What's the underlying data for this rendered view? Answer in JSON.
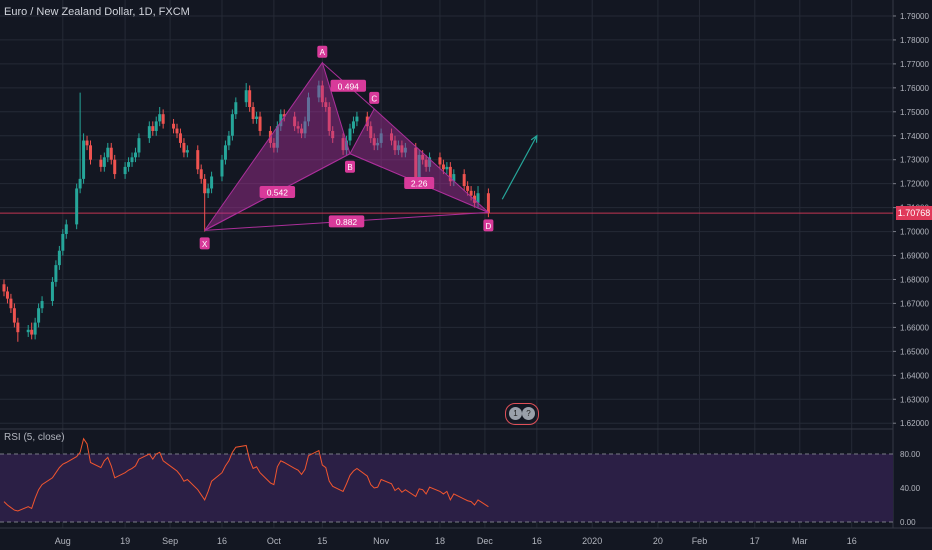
{
  "header": {
    "title": "Euro / New Zealand Dollar, 1D, FXCM"
  },
  "colors": {
    "background": "#131722",
    "grid": "#252a36",
    "up": "#26a69a",
    "down": "#ef5350",
    "pattern": "#ab2f9a",
    "pattern_label": "#d83a9a",
    "price_line": "#e03a5a",
    "arrow": "#26a69a",
    "rsi_line": "#f0552f",
    "rsi_band": "#2b1f45"
  },
  "events": {
    "icon": "calendar-event-icon",
    "count_a": "1",
    "count_b": "?"
  },
  "price_scale": {
    "ticks": [
      "1.79000",
      "1.78000",
      "1.77000",
      "1.76000",
      "1.75000",
      "1.74000",
      "1.73000",
      "1.72000",
      "1.71000",
      "1.70000",
      "1.69000",
      "1.68000",
      "1.67000",
      "1.66000",
      "1.65000",
      "1.64000",
      "1.63000",
      "1.62000"
    ],
    "last_price": "1.70768"
  },
  "time_axis": {
    "labels": [
      "Aug",
      "19",
      "Sep",
      "16",
      "Oct",
      "15",
      "Nov",
      "18",
      "Dec",
      "16",
      "2020",
      "20",
      "Feb",
      "17",
      "Mar",
      "16"
    ]
  },
  "rsi": {
    "title": "RSI (5, close)",
    "ticks": [
      "80.00",
      "40.00",
      "0.00"
    ]
  },
  "chart_data": {
    "type": "candlestick",
    "title": "Euro / New Zealand Dollar, 1D, FXCM",
    "ylim": [
      1.62,
      1.795
    ],
    "grid": true,
    "x": [
      "2019-07-15",
      "2019-07-16",
      "2019-07-17",
      "2019-07-18",
      "2019-07-19",
      "2019-07-22",
      "2019-07-23",
      "2019-07-24",
      "2019-07-25",
      "2019-07-26",
      "2019-07-29",
      "2019-07-30",
      "2019-07-31",
      "2019-08-01",
      "2019-08-02",
      "2019-08-05",
      "2019-08-06",
      "2019-08-07",
      "2019-08-08",
      "2019-08-09",
      "2019-08-12",
      "2019-08-13",
      "2019-08-14",
      "2019-08-15",
      "2019-08-16",
      "2019-08-19",
      "2019-08-20",
      "2019-08-21",
      "2019-08-22",
      "2019-08-23",
      "2019-08-26",
      "2019-08-27",
      "2019-08-28",
      "2019-08-29",
      "2019-08-30",
      "2019-09-02",
      "2019-09-03",
      "2019-09-04",
      "2019-09-05",
      "2019-09-06",
      "2019-09-09",
      "2019-09-10",
      "2019-09-11",
      "2019-09-12",
      "2019-09-13",
      "2019-09-16",
      "2019-09-17",
      "2019-09-18",
      "2019-09-19",
      "2019-09-20",
      "2019-09-23",
      "2019-09-24",
      "2019-09-25",
      "2019-09-26",
      "2019-09-27",
      "2019-09-30",
      "2019-10-01",
      "2019-10-02",
      "2019-10-03",
      "2019-10-04",
      "2019-10-07",
      "2019-10-08",
      "2019-10-09",
      "2019-10-10",
      "2019-10-11",
      "2019-10-14",
      "2019-10-15",
      "2019-10-16",
      "2019-10-17",
      "2019-10-18",
      "2019-10-21",
      "2019-10-22",
      "2019-10-23",
      "2019-10-24",
      "2019-10-25",
      "2019-10-28",
      "2019-10-29",
      "2019-10-30",
      "2019-10-31",
      "2019-11-01",
      "2019-11-04",
      "2019-11-05",
      "2019-11-06",
      "2019-11-07",
      "2019-11-08",
      "2019-11-11",
      "2019-11-12",
      "2019-11-13",
      "2019-11-14",
      "2019-11-15",
      "2019-11-18",
      "2019-11-19",
      "2019-11-20",
      "2019-11-21",
      "2019-11-22",
      "2019-11-25",
      "2019-11-26",
      "2019-11-27",
      "2019-11-28",
      "2019-11-29",
      "2019-12-02"
    ],
    "close": [
      1.675,
      1.672,
      1.668,
      1.662,
      1.658,
      1.659,
      1.657,
      1.662,
      1.668,
      1.671,
      1.679,
      1.686,
      1.692,
      1.699,
      1.703,
      1.718,
      1.722,
      1.738,
      1.736,
      1.73,
      1.727,
      1.731,
      1.735,
      1.73,
      1.724,
      1.727,
      1.729,
      1.731,
      1.733,
      1.739,
      1.744,
      1.742,
      1.746,
      1.749,
      1.745,
      1.743,
      1.741,
      1.737,
      1.733,
      1.734,
      1.726,
      1.722,
      1.716,
      1.718,
      1.723,
      1.73,
      1.736,
      1.74,
      1.749,
      1.754,
      1.759,
      1.752,
      1.747,
      1.748,
      1.742,
      1.737,
      1.735,
      1.744,
      1.749,
      1.748,
      1.744,
      1.743,
      1.741,
      1.746,
      1.756,
      1.761,
      1.754,
      1.752,
      1.742,
      1.739,
      1.734,
      1.738,
      1.743,
      1.746,
      1.748,
      1.744,
      1.739,
      1.736,
      1.737,
      1.741,
      1.738,
      1.734,
      1.736,
      1.733,
      1.735,
      1.722,
      1.732,
      1.73,
      1.727,
      1.731,
      1.728,
      1.726,
      1.727,
      1.721,
      1.724,
      1.719,
      1.717,
      1.715,
      1.712,
      1.716,
      1.7077
    ],
    "open": [
      1.678,
      1.675,
      1.672,
      1.668,
      1.662,
      1.658,
      1.659,
      1.657,
      1.662,
      1.668,
      1.671,
      1.679,
      1.686,
      1.692,
      1.699,
      1.703,
      1.718,
      1.722,
      1.738,
      1.736,
      1.73,
      1.727,
      1.731,
      1.735,
      1.73,
      1.724,
      1.727,
      1.729,
      1.731,
      1.733,
      1.739,
      1.744,
      1.742,
      1.746,
      1.749,
      1.745,
      1.743,
      1.741,
      1.737,
      1.733,
      1.734,
      1.726,
      1.722,
      1.716,
      1.718,
      1.723,
      1.73,
      1.736,
      1.74,
      1.749,
      1.754,
      1.759,
      1.752,
      1.747,
      1.748,
      1.742,
      1.737,
      1.735,
      1.744,
      1.749,
      1.748,
      1.744,
      1.743,
      1.741,
      1.746,
      1.756,
      1.761,
      1.754,
      1.752,
      1.742,
      1.739,
      1.734,
      1.738,
      1.743,
      1.746,
      1.748,
      1.744,
      1.739,
      1.736,
      1.737,
      1.741,
      1.738,
      1.734,
      1.736,
      1.733,
      1.735,
      1.722,
      1.732,
      1.73,
      1.727,
      1.731,
      1.728,
      1.726,
      1.727,
      1.721,
      1.724,
      1.719,
      1.717,
      1.715,
      1.712,
      1.716
    ],
    "high": [
      1.68,
      1.677,
      1.674,
      1.67,
      1.664,
      1.661,
      1.662,
      1.664,
      1.67,
      1.673,
      1.681,
      1.688,
      1.694,
      1.701,
      1.705,
      1.72,
      1.758,
      1.741,
      1.74,
      1.738,
      1.732,
      1.733,
      1.737,
      1.737,
      1.732,
      1.729,
      1.731,
      1.733,
      1.735,
      1.741,
      1.746,
      1.746,
      1.748,
      1.752,
      1.751,
      1.747,
      1.745,
      1.743,
      1.739,
      1.736,
      1.736,
      1.728,
      1.724,
      1.72,
      1.725,
      1.732,
      1.738,
      1.742,
      1.751,
      1.756,
      1.762,
      1.761,
      1.754,
      1.75,
      1.75,
      1.744,
      1.739,
      1.746,
      1.751,
      1.751,
      1.75,
      1.746,
      1.745,
      1.748,
      1.758,
      1.763,
      1.763,
      1.756,
      1.754,
      1.744,
      1.741,
      1.74,
      1.745,
      1.748,
      1.75,
      1.75,
      1.746,
      1.741,
      1.739,
      1.743,
      1.743,
      1.74,
      1.738,
      1.738,
      1.737,
      1.737,
      1.734,
      1.734,
      1.732,
      1.733,
      1.733,
      1.73,
      1.729,
      1.729,
      1.726,
      1.726,
      1.721,
      1.719,
      1.717,
      1.719,
      1.718
    ],
    "low": [
      1.673,
      1.67,
      1.666,
      1.66,
      1.654,
      1.656,
      1.655,
      1.655,
      1.66,
      1.666,
      1.669,
      1.677,
      1.684,
      1.69,
      1.697,
      1.701,
      1.716,
      1.72,
      1.734,
      1.728,
      1.725,
      1.725,
      1.729,
      1.728,
      1.722,
      1.722,
      1.725,
      1.727,
      1.729,
      1.731,
      1.737,
      1.74,
      1.74,
      1.744,
      1.743,
      1.741,
      1.739,
      1.735,
      1.731,
      1.731,
      1.724,
      1.72,
      1.7,
      1.714,
      1.716,
      1.721,
      1.728,
      1.734,
      1.738,
      1.747,
      1.752,
      1.75,
      1.745,
      1.745,
      1.74,
      1.735,
      1.733,
      1.733,
      1.742,
      1.746,
      1.742,
      1.741,
      1.739,
      1.739,
      1.744,
      1.754,
      1.752,
      1.75,
      1.74,
      1.737,
      1.732,
      1.732,
      1.736,
      1.741,
      1.744,
      1.742,
      1.737,
      1.734,
      1.734,
      1.735,
      1.736,
      1.732,
      1.732,
      1.731,
      1.731,
      1.72,
      1.72,
      1.728,
      1.725,
      1.725,
      1.726,
      1.724,
      1.724,
      1.719,
      1.719,
      1.717,
      1.715,
      1.713,
      1.71,
      1.71,
      1.706
    ],
    "harmonic_pattern": {
      "points": [
        {
          "label": "X",
          "date": "2019-09-11",
          "price": 1.7005
        },
        {
          "label": "A",
          "date": "2019-10-15",
          "price": 1.7705
        },
        {
          "label": "B",
          "date": "2019-10-23",
          "price": 1.7325
        },
        {
          "label": "C",
          "date": "2019-10-30",
          "price": 1.7512
        },
        {
          "label": "D",
          "date": "2019-12-02",
          "price": 1.708
        }
      ],
      "ratios": [
        {
          "label": "0.542",
          "between": "X-B"
        },
        {
          "label": "0.494",
          "between": "A-C"
        },
        {
          "label": "2.26",
          "between": "B-D"
        },
        {
          "label": "0.882",
          "between": "X-D"
        }
      ]
    },
    "projection_arrow": {
      "from": {
        "date": "2019-12-06",
        "price": 1.7135
      },
      "to": {
        "date": "2019-12-16",
        "price": 1.74
      }
    },
    "rsi": {
      "name": "RSI (5, close)",
      "ylim": [
        0,
        100
      ],
      "upper_band": 80,
      "lower_band": 0,
      "values": [
        24,
        20,
        17,
        14,
        13,
        18,
        16,
        28,
        38,
        44,
        52,
        58,
        64,
        68,
        70,
        77,
        82,
        98,
        92,
        70,
        64,
        72,
        76,
        66,
        52,
        58,
        61,
        63,
        66,
        74,
        80,
        74,
        80,
        82,
        72,
        63,
        60,
        55,
        48,
        50,
        38,
        32,
        26,
        36,
        48,
        58,
        66,
        72,
        82,
        88,
        90,
        73,
        63,
        65,
        58,
        46,
        44,
        65,
        72,
        70,
        63,
        61,
        56,
        62,
        78,
        84,
        67,
        64,
        48,
        42,
        36,
        45,
        55,
        60,
        63,
        54,
        44,
        40,
        41,
        50,
        45,
        37,
        40,
        35,
        38,
        30,
        39,
        38,
        33,
        41,
        36,
        33,
        36,
        26,
        33,
        27,
        25,
        24,
        20,
        26,
        18
      ]
    }
  }
}
